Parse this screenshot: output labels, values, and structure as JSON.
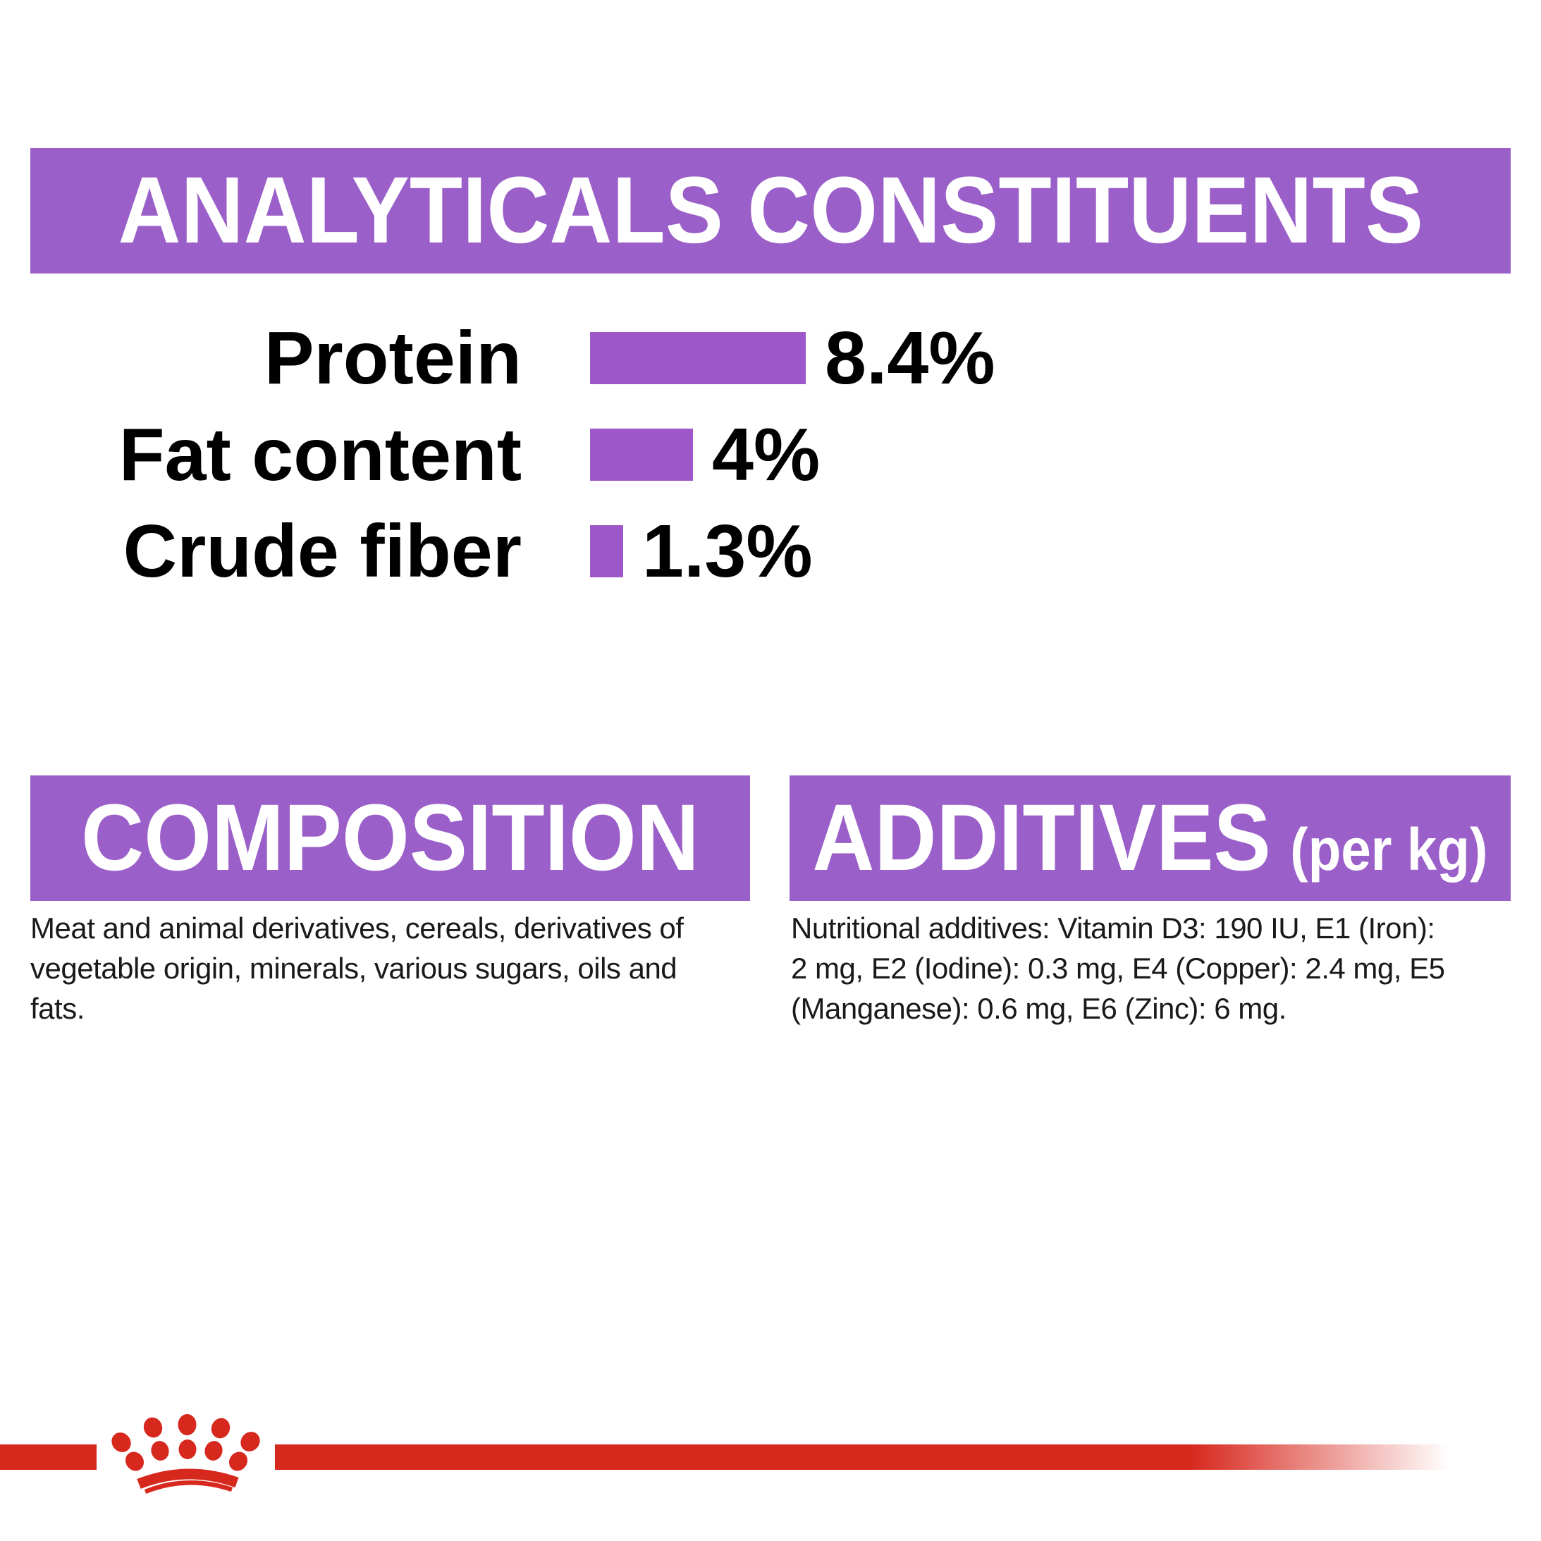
{
  "colors": {
    "purple": "#9A5FC8",
    "bar": "#9D57C9",
    "red": "#D7281E",
    "text": "#1A1A1A",
    "white": "#FFFFFF"
  },
  "header": {
    "title": "ANALYTICALS CONSTITUENTS"
  },
  "chart_data": {
    "type": "bar",
    "orientation": "horizontal",
    "title": "ANALYTICALS CONSTITUENTS",
    "categories": [
      "Protein",
      "Fat content",
      "Crude fiber"
    ],
    "values": [
      8.4,
      4,
      1.3
    ],
    "value_labels": [
      "8.4%",
      "4%",
      "1.3%"
    ],
    "unit": "%",
    "xlim": [
      0,
      8.4
    ],
    "bar_color": "#9D57C9",
    "grid": false,
    "legend": false
  },
  "composition": {
    "heading": "COMPOSITION",
    "body_lines": [
      "Meat and animal derivatives, cereals, derivatives of",
      "vegetable origin, minerals, various sugars, oils and",
      "fats."
    ]
  },
  "additives": {
    "heading": "ADDITIVES",
    "heading_suffix": "(per kg)",
    "body_lines": [
      "Nutritional additives: Vitamin D3: 190 IU, E1 (Iron):",
      "2 mg, E2 (Iodine): 0.3 mg, E4 (Copper): 2.4 mg, E5",
      "(Manganese): 0.6 mg, E6 (Zinc): 6 mg."
    ]
  }
}
